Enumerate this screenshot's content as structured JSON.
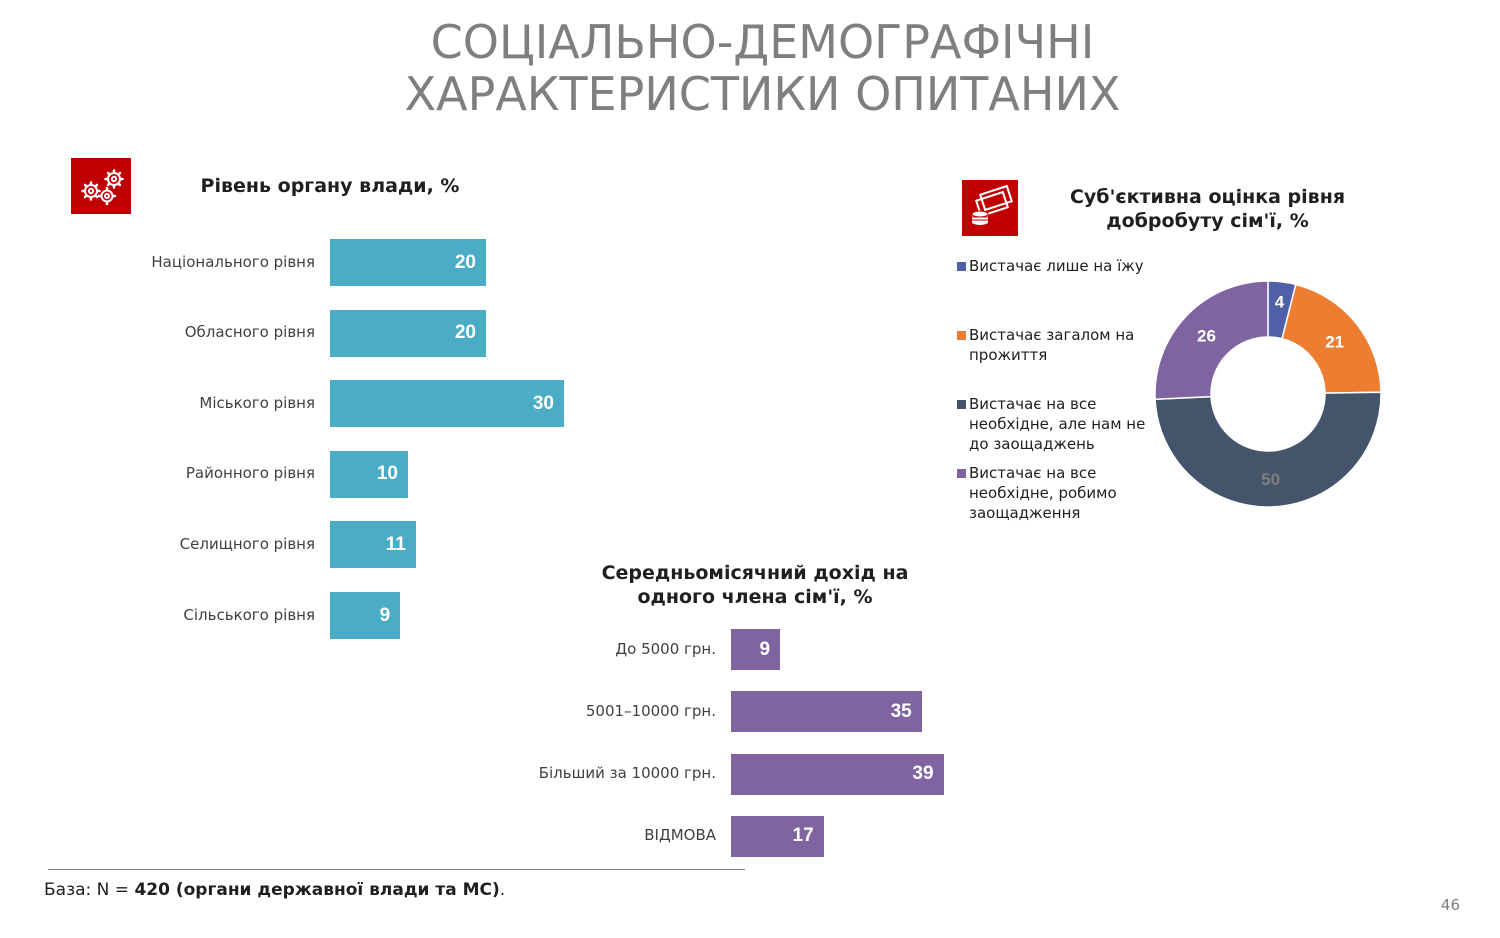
{
  "title": {
    "line1": "СОЦІАЛЬНО-ДЕМОГРАФІЧНІ",
    "line2": "ХАРАКТЕРИСТИКИ ОПИТАНИХ"
  },
  "icons": {
    "authority": "gears-icon",
    "welfare": "money-coins-icon",
    "color": "#c00000"
  },
  "chart_data": [
    {
      "id": "authority",
      "type": "bar",
      "orientation": "horizontal",
      "title": "Рівень органу влади, %",
      "categories": [
        "Національного рівня",
        "Обласного рівня",
        "Міського рівня",
        "Районного рівня",
        "Селищного рівня",
        "Сільського рівня"
      ],
      "values": [
        20,
        20,
        30,
        10,
        11,
        9
      ],
      "color": "#4bacc6",
      "data_labels": true,
      "axis": false,
      "grid": false
    },
    {
      "id": "income",
      "type": "bar",
      "orientation": "horizontal",
      "title": "Середньомісячний дохід на одного члена сім'ї, %",
      "title_line1": "Середньомісячний дохід на",
      "title_line2": "одного члена сім'ї, %",
      "categories": [
        "До 5000 грн.",
        "5001–10000 грн.",
        "Більший за 10000 грн.",
        "ВІДМОВА"
      ],
      "values": [
        9,
        35,
        39,
        17
      ],
      "color": "#8064a2",
      "data_labels": true,
      "axis": false,
      "grid": false
    },
    {
      "id": "welfare",
      "type": "pie",
      "variant": "donut",
      "title": "Суб'єктивна оцінка рівня добробуту сім'ї, %",
      "title_line1": "Суб'єктивна оцінка рівня",
      "title_line2": "добробуту сім'ї, %",
      "legend_position": "left",
      "series": [
        {
          "name": "Вистачає лише на їжу",
          "value": 4,
          "color": "#4f5fa8"
        },
        {
          "name": "Вистачає загалом на прожиття",
          "value": 21,
          "color": "#ed7d31"
        },
        {
          "name": "Вистачає на все необхідне, але нам не до заощаджень",
          "value": 50,
          "color": "#44546a"
        },
        {
          "name": "Вистачає на все необхідне, робимо заощадження",
          "value": 26,
          "color": "#8064a2"
        }
      ],
      "legend_lines": [
        [
          "Вистачає лише на їжу"
        ],
        [
          "Вистачає загалом на",
          "прожиття"
        ],
        [
          "Вистачає на все",
          "необхідне, але нам не",
          "до заощаджень"
        ],
        [
          "Вистачає на все",
          "необхідне, робимо",
          "заощадження"
        ]
      ],
      "label_colors": [
        "#ffffff",
        "#ffffff",
        "#7f7f7f",
        "#ffffff"
      ]
    }
  ],
  "footnote": {
    "prefix": "База: N = ",
    "bold": "420 (органи державної влади та МС)",
    "suffix": "."
  },
  "page_number": "46"
}
